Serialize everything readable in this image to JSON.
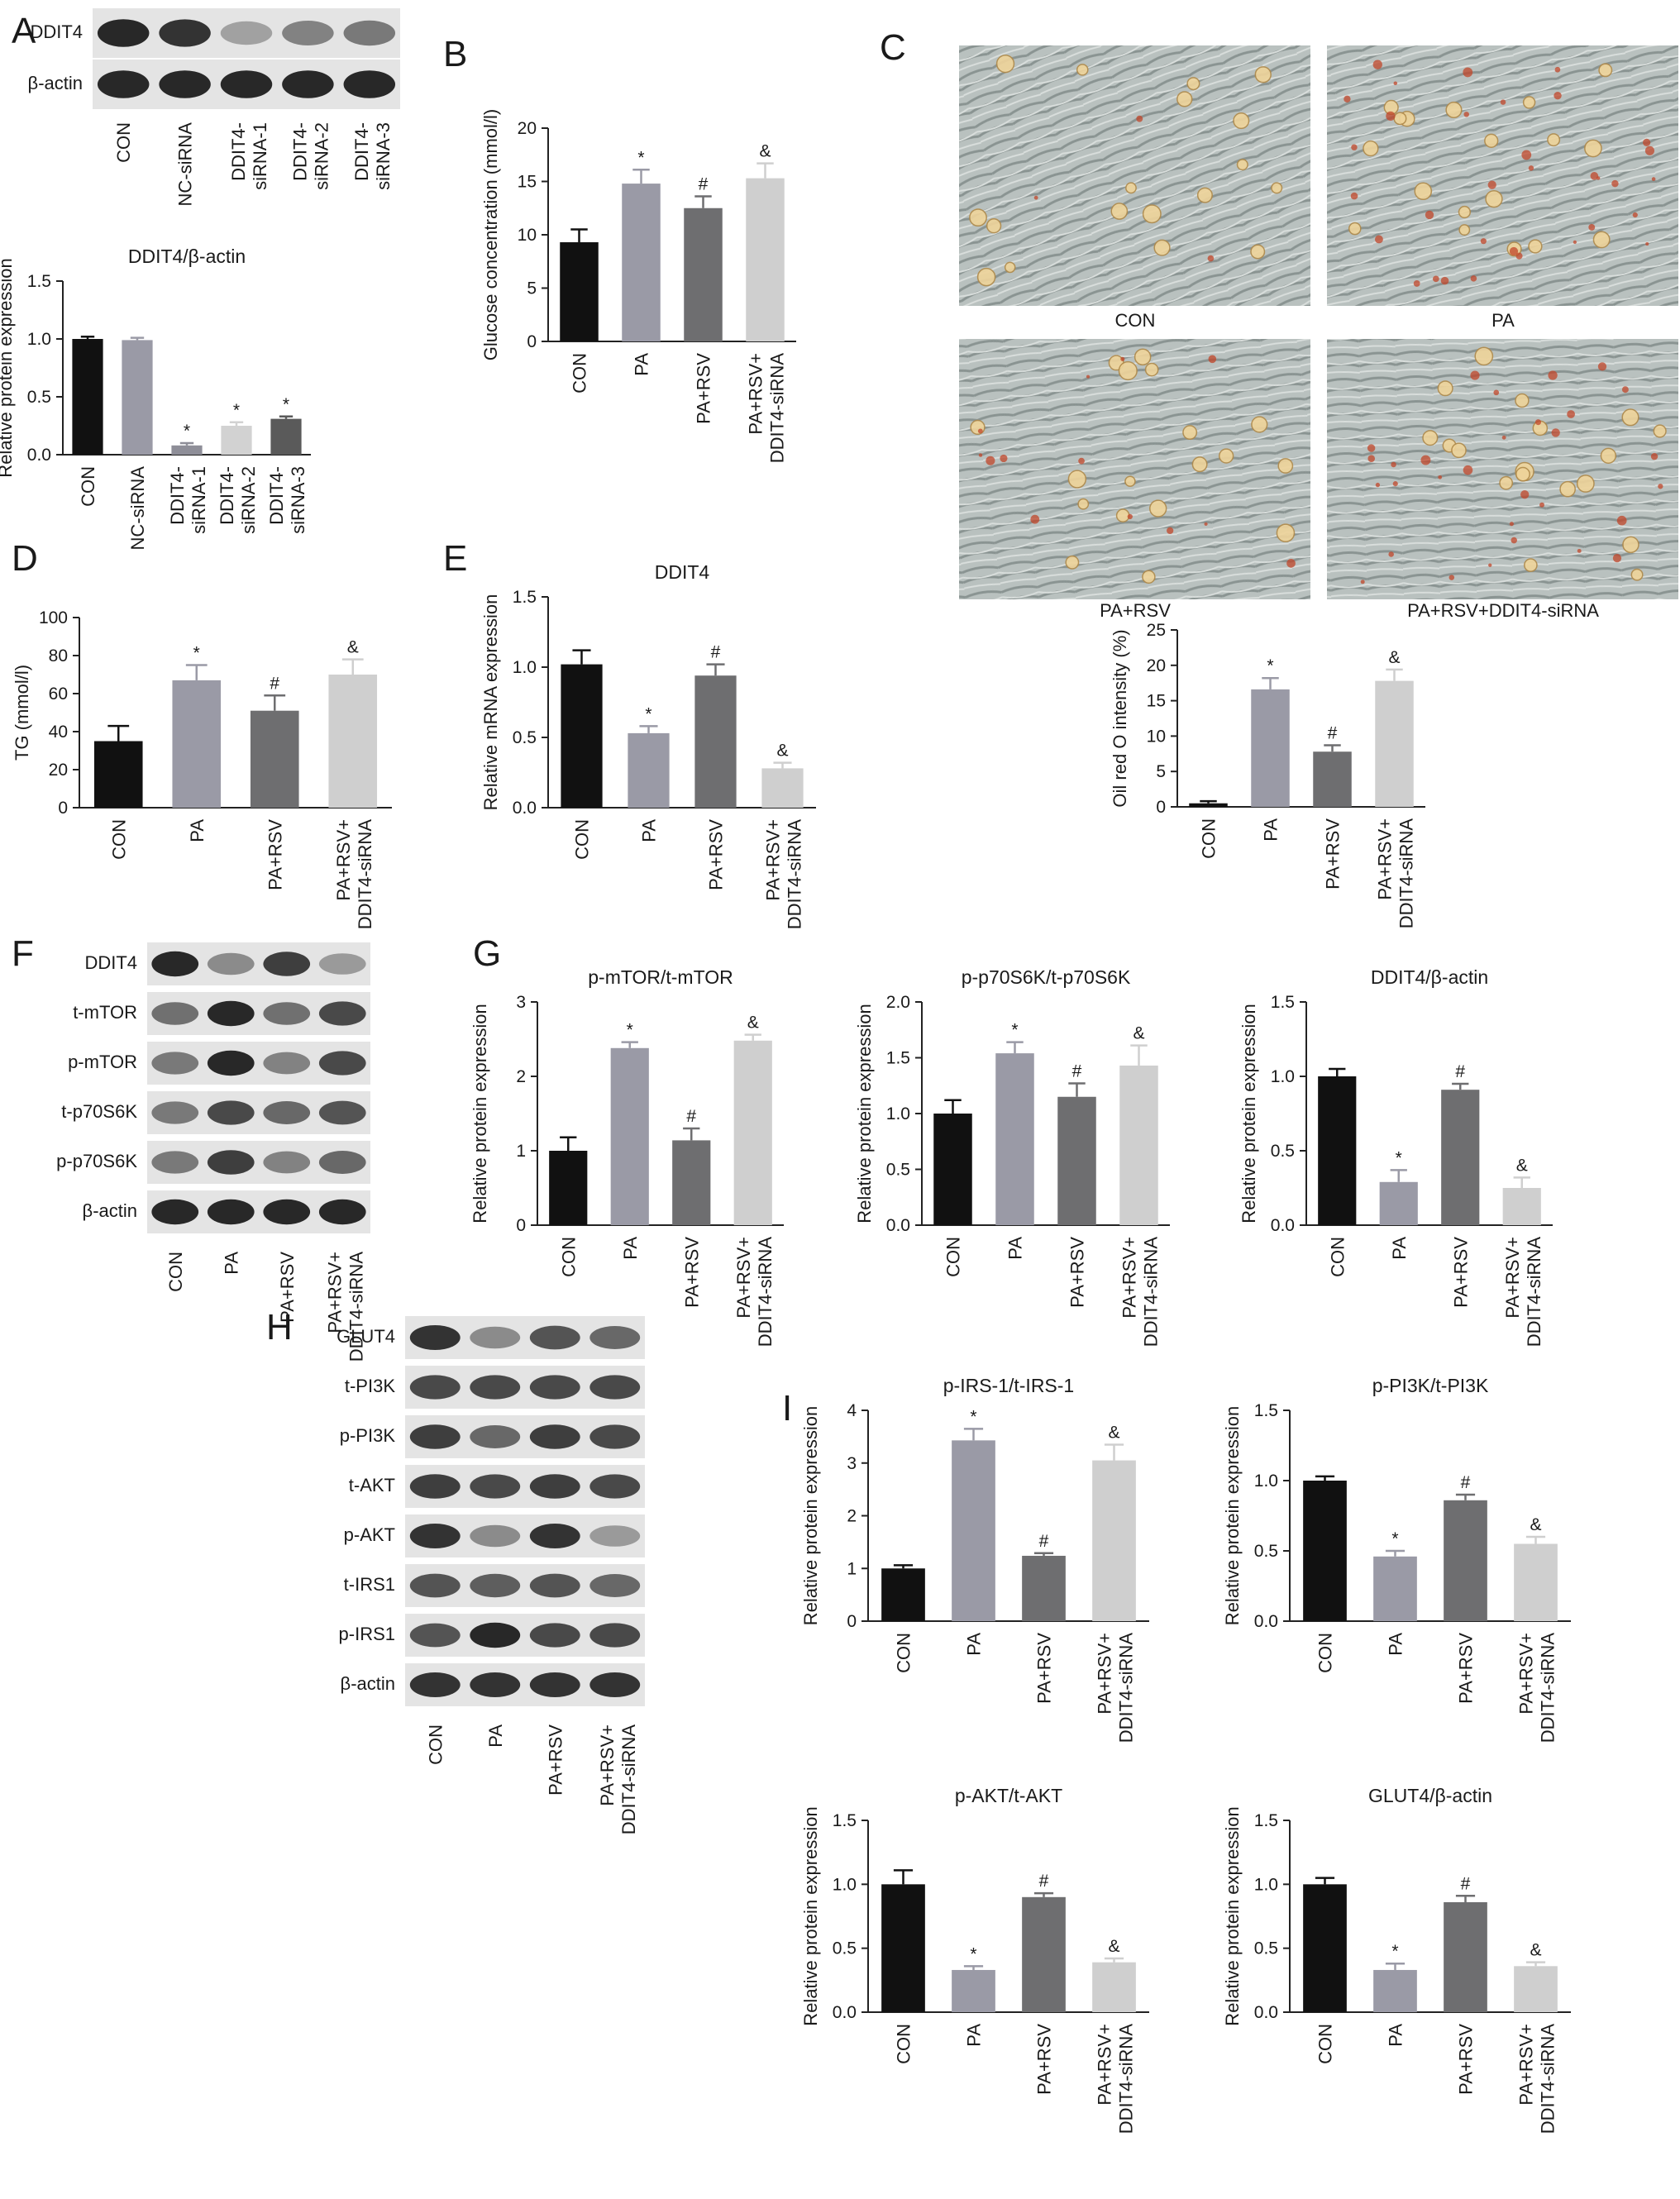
{
  "panels": [
    {
      "id": "A",
      "label": "A"
    },
    {
      "id": "B",
      "label": "B"
    },
    {
      "id": "C",
      "label": "C"
    },
    {
      "id": "D",
      "label": "D"
    },
    {
      "id": "E",
      "label": "E"
    },
    {
      "id": "F",
      "label": "F"
    },
    {
      "id": "G",
      "label": "G"
    },
    {
      "id": "H",
      "label": "H"
    },
    {
      "id": "I",
      "label": "I"
    }
  ],
  "colors": {
    "black": "#111111",
    "grey1": "#9a9aa6",
    "grey2": "#6e6e70",
    "grey3": "#cfcfcf",
    "grey4": "#5a5a5a"
  },
  "blots": [
    {
      "id": "A",
      "rows": [
        "DDIT4",
        "β-actin"
      ],
      "lanes": [
        "CON",
        "NC-siRNA",
        "DDIT4-\nsiRNA-1",
        "DDIT4-\nsiRNA-2",
        "DDIT4-\nsiRNA-3"
      ],
      "intensity": [
        [
          1.0,
          0.95,
          0.35,
          0.55,
          0.6
        ],
        [
          1.0,
          1.0,
          1.0,
          1.0,
          1.0
        ]
      ]
    },
    {
      "id": "F",
      "rows": [
        "DDIT4",
        "t-mTOR",
        "p-mTOR",
        "t-p70S6K",
        "p-p70S6K",
        "β-actin"
      ],
      "lanes": [
        "CON",
        "PA",
        "PA+RSV",
        "PA+RSV+\nDDIT4-siRNA"
      ],
      "intensity": [
        [
          1.0,
          0.5,
          0.9,
          0.4
        ],
        [
          0.65,
          1.0,
          0.65,
          0.85
        ],
        [
          0.6,
          1.0,
          0.55,
          0.85
        ],
        [
          0.6,
          0.85,
          0.7,
          0.8
        ],
        [
          0.6,
          0.9,
          0.55,
          0.7
        ],
        [
          1.0,
          1.0,
          1.0,
          1.0
        ]
      ]
    },
    {
      "id": "H",
      "rows": [
        "GLUT4",
        "t-PI3K",
        "p-PI3K",
        "t-AKT",
        "p-AKT",
        "t-IRS1",
        "p-IRS1",
        "β-actin"
      ],
      "lanes": [
        "CON",
        "PA",
        "PA+RSV",
        "PA+RSV+\nDDIT4-siRNA"
      ],
      "intensity": [
        [
          0.95,
          0.5,
          0.8,
          0.7
        ],
        [
          0.85,
          0.85,
          0.85,
          0.85
        ],
        [
          0.9,
          0.7,
          0.9,
          0.85
        ],
        [
          0.9,
          0.85,
          0.9,
          0.85
        ],
        [
          0.95,
          0.5,
          0.95,
          0.4
        ],
        [
          0.8,
          0.75,
          0.8,
          0.7
        ],
        [
          0.8,
          1.0,
          0.85,
          0.85
        ],
        [
          0.95,
          0.95,
          0.95,
          0.95
        ]
      ]
    }
  ],
  "micrographs": {
    "captions": [
      "CON",
      "PA",
      "PA+RSV",
      "PA+RSV+DDIT4-siRNA"
    ],
    "redness": [
      0.05,
      0.55,
      0.22,
      0.5
    ]
  },
  "chart_data": [
    {
      "id": "A-chart",
      "type": "bar",
      "title": "DDIT4/β-actin",
      "ylabel": "Relative protein expression",
      "ylim": [
        0,
        1.5
      ],
      "yticks": [
        0.0,
        0.5,
        1.0,
        1.5
      ],
      "categories": [
        "CON",
        "NC-siRNA",
        "DDIT4-\nsiRNA-1",
        "DDIT4-\nsiRNA-2",
        "DDIT4-\nsiRNA-3"
      ],
      "values": [
        1.0,
        0.99,
        0.08,
        0.25,
        0.31
      ],
      "errors": [
        0.02,
        0.02,
        0.02,
        0.03,
        0.02
      ],
      "marks": [
        "",
        "",
        "*",
        "*",
        "*"
      ],
      "colors": [
        "#111111",
        "#9a9aa6",
        "#8e8e98",
        "#d2d2d2",
        "#5a5a5a"
      ]
    },
    {
      "id": "B-chart",
      "type": "bar",
      "title": "",
      "ylabel": "Glucose concentration (mmol/l)",
      "ylim": [
        0,
        20
      ],
      "yticks": [
        0,
        5,
        10,
        15,
        20
      ],
      "categories": [
        "CON",
        "PA",
        "PA+RSV",
        "PA+RSV+\nDDIT4-siRNA"
      ],
      "values": [
        9.3,
        14.8,
        12.5,
        15.3
      ],
      "errors": [
        1.2,
        1.3,
        1.1,
        1.4
      ],
      "marks": [
        "",
        "*",
        "#",
        "&"
      ],
      "colors": [
        "#111111",
        "#9a9aa6",
        "#6e6e70",
        "#cfcfcf"
      ]
    },
    {
      "id": "C-chart",
      "type": "bar",
      "title": "",
      "ylabel": "Oil red O intensity (%)",
      "ylim": [
        0,
        25
      ],
      "yticks": [
        0,
        5,
        10,
        15,
        20,
        25
      ],
      "categories": [
        "CON",
        "PA",
        "PA+RSV",
        "PA+RSV+\nDDIT4-siRNA"
      ],
      "values": [
        0.5,
        16.6,
        7.8,
        17.8
      ],
      "errors": [
        0.3,
        1.6,
        0.9,
        1.6
      ],
      "marks": [
        "",
        "*",
        "#",
        "&"
      ],
      "colors": [
        "#111111",
        "#9a9aa6",
        "#6e6e70",
        "#cfcfcf"
      ]
    },
    {
      "id": "D-chart",
      "type": "bar",
      "title": "",
      "ylabel": "TG (mmol/l)",
      "ylim": [
        0,
        100
      ],
      "yticks": [
        0,
        20,
        40,
        60,
        80,
        100
      ],
      "categories": [
        "CON",
        "PA",
        "PA+RSV",
        "PA+RSV+\nDDIT4-siRNA"
      ],
      "values": [
        35,
        67,
        51,
        70
      ],
      "errors": [
        8,
        8,
        8,
        8
      ],
      "marks": [
        "",
        "*",
        "#",
        "&"
      ],
      "colors": [
        "#111111",
        "#9a9aa6",
        "#6e6e70",
        "#cfcfcf"
      ]
    },
    {
      "id": "E-chart",
      "type": "bar",
      "title": "DDIT4",
      "ylabel": "Relative mRNA expression",
      "ylim": [
        0,
        1.5
      ],
      "yticks": [
        0.0,
        0.5,
        1.0,
        1.5
      ],
      "categories": [
        "CON",
        "PA",
        "PA+RSV",
        "PA+RSV+\nDDIT4-siRNA"
      ],
      "values": [
        1.02,
        0.53,
        0.94,
        0.28
      ],
      "errors": [
        0.1,
        0.05,
        0.08,
        0.04
      ],
      "marks": [
        "",
        "*",
        "#",
        "&"
      ],
      "colors": [
        "#111111",
        "#9a9aa6",
        "#6e6e70",
        "#cfcfcf"
      ]
    },
    {
      "id": "G1-chart",
      "type": "bar",
      "title": "p-mTOR/t-mTOR",
      "ylabel": "Relative protein expression",
      "ylim": [
        0,
        3
      ],
      "yticks": [
        0,
        1,
        2,
        3
      ],
      "categories": [
        "CON",
        "PA",
        "PA+RSV",
        "PA+RSV+\nDDIT4-siRNA"
      ],
      "values": [
        1.0,
        2.38,
        1.14,
        2.48
      ],
      "errors": [
        0.18,
        0.08,
        0.16,
        0.08
      ],
      "marks": [
        "",
        "*",
        "#",
        "&"
      ],
      "colors": [
        "#111111",
        "#9a9aa6",
        "#6e6e70",
        "#cfcfcf"
      ]
    },
    {
      "id": "G2-chart",
      "type": "bar",
      "title": "p-p70S6K/t-p70S6K",
      "ylabel": "Relative protein expression",
      "ylim": [
        0,
        2.0
      ],
      "yticks": [
        0.0,
        0.5,
        1.0,
        1.5,
        2.0
      ],
      "categories": [
        "CON",
        "PA",
        "PA+RSV",
        "PA+RSV+\nDDIT4-siRNA"
      ],
      "values": [
        1.0,
        1.54,
        1.15,
        1.43
      ],
      "errors": [
        0.12,
        0.1,
        0.12,
        0.18
      ],
      "marks": [
        "",
        "*",
        "#",
        "&"
      ],
      "colors": [
        "#111111",
        "#9a9aa6",
        "#6e6e70",
        "#cfcfcf"
      ]
    },
    {
      "id": "G3-chart",
      "type": "bar",
      "title": "DDIT4/β-actin",
      "ylabel": "Relative protein expression",
      "ylim": [
        0,
        1.5
      ],
      "yticks": [
        0.0,
        0.5,
        1.0,
        1.5
      ],
      "categories": [
        "CON",
        "PA",
        "PA+RSV",
        "PA+RSV+\nDDIT4-siRNA"
      ],
      "values": [
        1.0,
        0.29,
        0.91,
        0.25
      ],
      "errors": [
        0.05,
        0.08,
        0.04,
        0.07
      ],
      "marks": [
        "",
        "*",
        "#",
        "&"
      ],
      "colors": [
        "#111111",
        "#9a9aa6",
        "#6e6e70",
        "#cfcfcf"
      ]
    },
    {
      "id": "I1-chart",
      "type": "bar",
      "title": "p-IRS-1/t-IRS-1",
      "ylabel": "Relative protein expression",
      "ylim": [
        0,
        4
      ],
      "yticks": [
        0,
        1,
        2,
        3,
        4
      ],
      "categories": [
        "CON",
        "PA",
        "PA+RSV",
        "PA+RSV+\nDDIT4-siRNA"
      ],
      "values": [
        1.0,
        3.43,
        1.24,
        3.05
      ],
      "errors": [
        0.06,
        0.22,
        0.05,
        0.3
      ],
      "marks": [
        "",
        "*",
        "#",
        "&"
      ],
      "colors": [
        "#111111",
        "#9a9aa6",
        "#6e6e70",
        "#cfcfcf"
      ]
    },
    {
      "id": "I2-chart",
      "type": "bar",
      "title": "p-PI3K/t-PI3K",
      "ylabel": "Relative protein expression",
      "ylim": [
        0,
        1.5
      ],
      "yticks": [
        0.0,
        0.5,
        1.0,
        1.5
      ],
      "categories": [
        "CON",
        "PA",
        "PA+RSV",
        "PA+RSV+\nDDIT4-siRNA"
      ],
      "values": [
        1.0,
        0.46,
        0.86,
        0.55
      ],
      "errors": [
        0.03,
        0.04,
        0.04,
        0.05
      ],
      "marks": [
        "",
        "*",
        "#",
        "&"
      ],
      "colors": [
        "#111111",
        "#9a9aa6",
        "#6e6e70",
        "#cfcfcf"
      ]
    },
    {
      "id": "I3-chart",
      "type": "bar",
      "title": "p-AKT/t-AKT",
      "ylabel": "Relative protein expression",
      "ylim": [
        0,
        1.5
      ],
      "yticks": [
        0.0,
        0.5,
        1.0,
        1.5
      ],
      "categories": [
        "CON",
        "PA",
        "PA+RSV",
        "PA+RSV+\nDDIT4-siRNA"
      ],
      "values": [
        1.0,
        0.33,
        0.9,
        0.39
      ],
      "errors": [
        0.11,
        0.03,
        0.03,
        0.03
      ],
      "marks": [
        "",
        "*",
        "#",
        "&"
      ],
      "colors": [
        "#111111",
        "#9a9aa6",
        "#6e6e70",
        "#cfcfcf"
      ]
    },
    {
      "id": "I4-chart",
      "type": "bar",
      "title": "GLUT4/β-actin",
      "ylabel": "Relative protein expression",
      "ylim": [
        0,
        1.5
      ],
      "yticks": [
        0.0,
        0.5,
        1.0,
        1.5
      ],
      "categories": [
        "CON",
        "PA",
        "PA+RSV",
        "PA+RSV+\nDDIT4-siRNA"
      ],
      "values": [
        1.0,
        0.33,
        0.86,
        0.36
      ],
      "errors": [
        0.05,
        0.05,
        0.05,
        0.03
      ],
      "marks": [
        "",
        "*",
        "#",
        "&"
      ],
      "colors": [
        "#111111",
        "#9a9aa6",
        "#6e6e70",
        "#cfcfcf"
      ]
    }
  ]
}
